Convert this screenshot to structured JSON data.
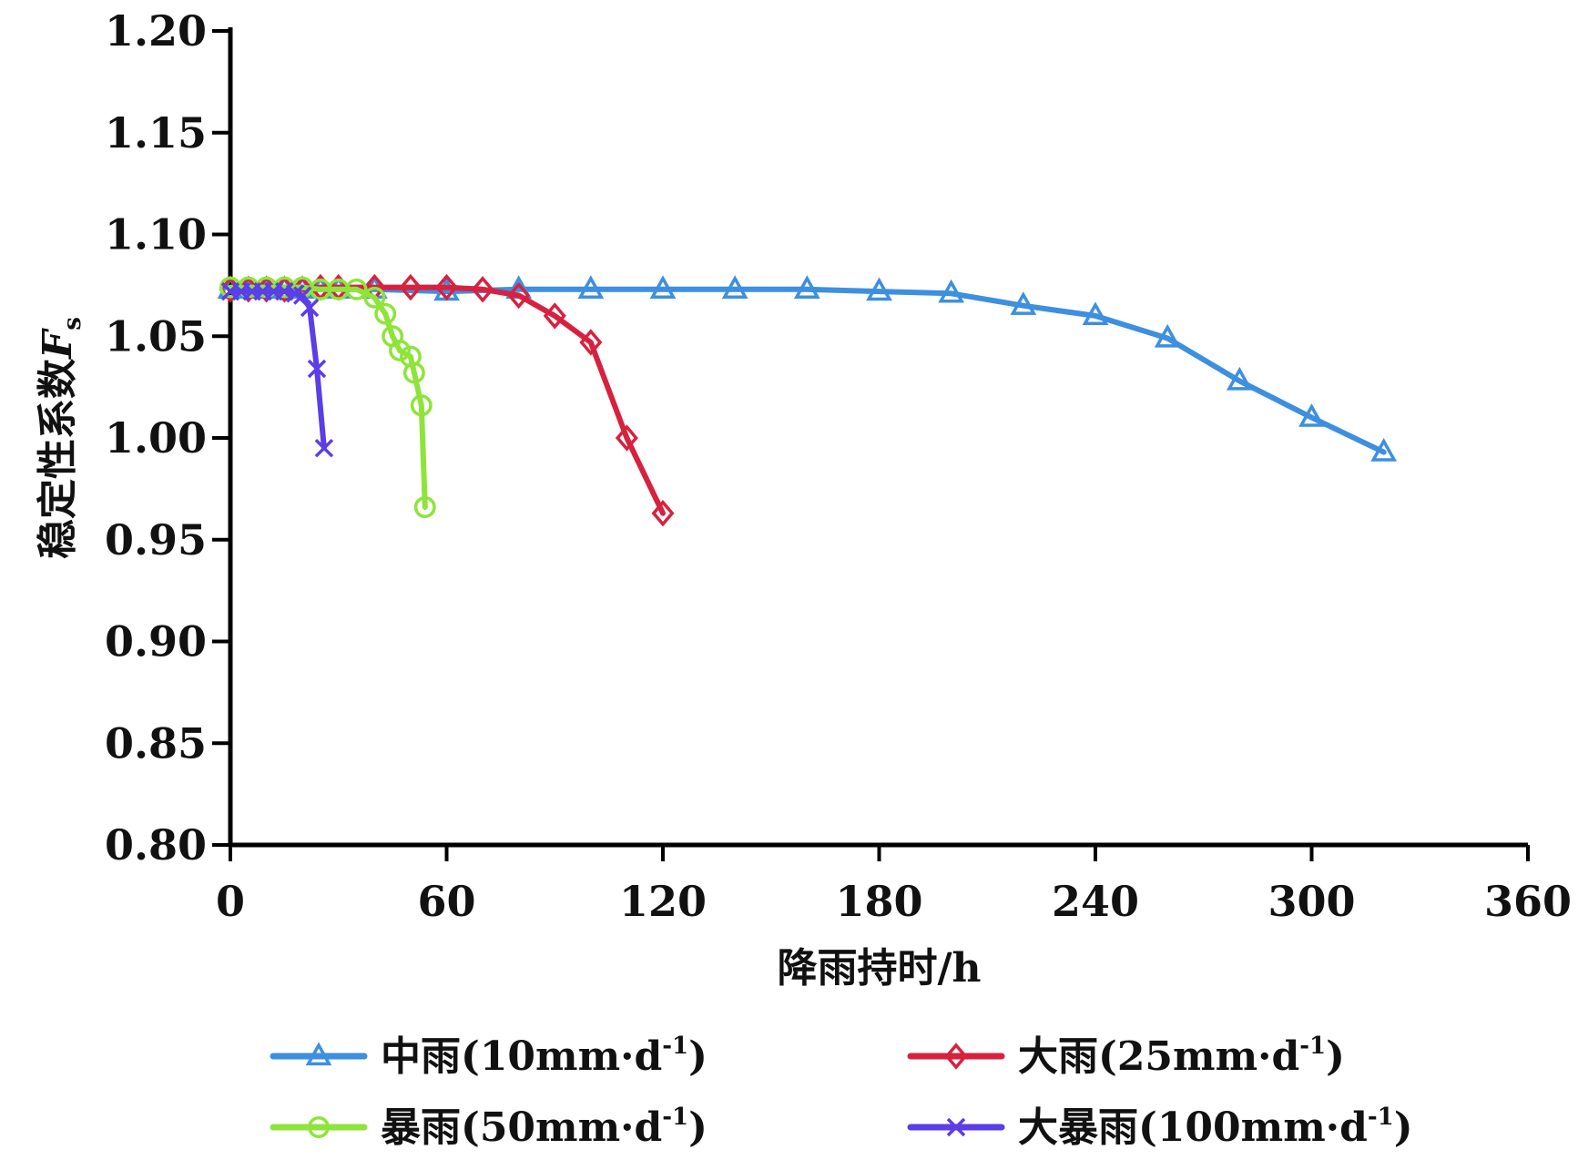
{
  "chart_data": {
    "type": "line",
    "xlabel": "降雨持时/h",
    "ylabel_main": "稳定性系数",
    "ylabel_var": "F",
    "ylabel_sub": "s",
    "xlim": [
      0,
      360
    ],
    "ylim": [
      0.8,
      1.2
    ],
    "x_ticks": [
      0,
      60,
      120,
      180,
      240,
      300,
      360
    ],
    "x_tick_labels": [
      "0",
      "60",
      "120",
      "180",
      "240",
      "300",
      "360"
    ],
    "y_ticks": [
      0.8,
      0.85,
      0.9,
      0.95,
      1.0,
      1.05,
      1.1,
      1.15,
      1.2
    ],
    "y_tick_labels": [
      "0.80",
      "0.85",
      "0.90",
      "0.95",
      "1.00",
      "1.05",
      "1.10",
      "1.15",
      "1.20"
    ],
    "grid": false,
    "legend_position": "bottom",
    "series": [
      {
        "name": "中雨(10mm·d",
        "name_sup": "-1",
        "name_end": ")",
        "color": "#3d8fe0",
        "marker": "triangle",
        "x": [
          0,
          5,
          10,
          15,
          20,
          25,
          30,
          40,
          60,
          80,
          100,
          120,
          140,
          160,
          180,
          200,
          220,
          240,
          260,
          280,
          300,
          320
        ],
        "y": [
          1.073,
          1.073,
          1.073,
          1.073,
          1.073,
          1.073,
          1.073,
          1.073,
          1.072,
          1.073,
          1.073,
          1.073,
          1.073,
          1.073,
          1.072,
          1.071,
          1.065,
          1.06,
          1.049,
          1.028,
          1.01,
          0.993
        ]
      },
      {
        "name": "大雨(25mm·d",
        "name_sup": "-1",
        "name_end": ")",
        "color": "#d8213f",
        "marker": "diamond",
        "x": [
          0,
          5,
          10,
          15,
          20,
          25,
          30,
          40,
          50,
          60,
          70,
          80,
          90,
          100,
          110,
          120
        ],
        "y": [
          1.073,
          1.073,
          1.073,
          1.073,
          1.073,
          1.074,
          1.074,
          1.074,
          1.074,
          1.074,
          1.073,
          1.07,
          1.06,
          1.047,
          1.0,
          0.963
        ]
      },
      {
        "name": "暴雨(50mm·d",
        "name_sup": "-1",
        "name_end": ")",
        "color": "#8ee43a",
        "marker": "circle",
        "x": [
          0,
          5,
          10,
          15,
          20,
          25,
          30,
          35,
          40,
          43,
          45,
          47,
          50,
          51,
          53,
          54
        ],
        "y": [
          1.074,
          1.074,
          1.074,
          1.074,
          1.074,
          1.073,
          1.073,
          1.073,
          1.069,
          1.061,
          1.05,
          1.043,
          1.04,
          1.032,
          1.016,
          0.966
        ]
      },
      {
        "name": "大暴雨(100mm·d",
        "name_sup": "-1",
        "name_end": ")",
        "color": "#5b3ee8",
        "marker": "x",
        "x": [
          0,
          3,
          6,
          9,
          12,
          15,
          18,
          20,
          22,
          24,
          26
        ],
        "y": [
          1.072,
          1.072,
          1.072,
          1.072,
          1.072,
          1.072,
          1.071,
          1.07,
          1.064,
          1.034,
          0.995
        ]
      }
    ]
  }
}
